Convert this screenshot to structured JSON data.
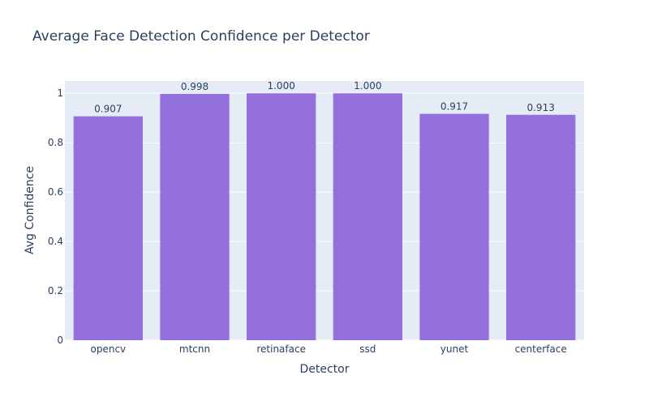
{
  "chart_data": {
    "type": "bar",
    "title": "Average Face Detection Confidence per Detector",
    "xlabel": "Detector",
    "ylabel": "Avg Confidence",
    "categories": [
      "opencv",
      "mtcnn",
      "retinaface",
      "ssd",
      "yunet",
      "centerface"
    ],
    "values": [
      0.907,
      0.998,
      1.0,
      1.0,
      0.917,
      0.913
    ],
    "data_labels": [
      "0.907",
      "0.998",
      "1.000",
      "1.000",
      "0.917",
      "0.913"
    ],
    "ylim": [
      0,
      1.05
    ],
    "y_ticks": [
      0,
      0.2,
      0.4,
      0.6,
      0.8,
      1
    ],
    "y_tick_labels": [
      "0",
      "0.2",
      "0.4",
      "0.6",
      "0.8",
      "1"
    ],
    "grid": true,
    "legend": "none",
    "colors": {
      "bar": "#9370DB",
      "plot_bg": "#E5ECF6",
      "grid": "#FFFFFF",
      "text": "#2A3F5F"
    }
  }
}
